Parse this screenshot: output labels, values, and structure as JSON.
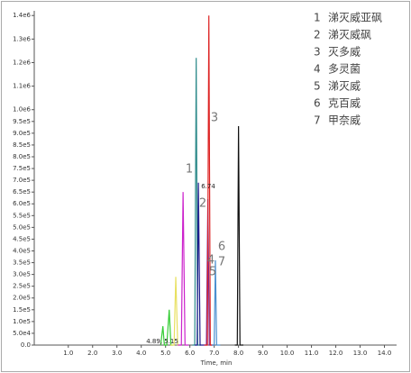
{
  "chart_data": {
    "type": "line",
    "xlabel": "Time, min",
    "xlim": [
      -0.4,
      14.5
    ],
    "xticks": [
      {
        "value": 1,
        "label": "1.0"
      },
      {
        "value": 2,
        "label": "2.0"
      },
      {
        "value": 3,
        "label": "3.0"
      },
      {
        "value": 4,
        "label": "4.0"
      },
      {
        "value": 5,
        "label": "5.0"
      },
      {
        "value": 6,
        "label": "6.0"
      },
      {
        "value": 7,
        "label": "7.0"
      },
      {
        "value": 8,
        "label": "8.0"
      },
      {
        "value": 9,
        "label": "9.0"
      },
      {
        "value": 10,
        "label": "10.0"
      },
      {
        "value": 11,
        "label": "11.0"
      },
      {
        "value": 12,
        "label": "12.0"
      },
      {
        "value": 13,
        "label": "13.0"
      },
      {
        "value": 14,
        "label": "14.0"
      }
    ],
    "ylim": [
      0,
      1420000
    ],
    "yticks": [
      {
        "value": 0,
        "label": "0.0"
      },
      {
        "value": 50000,
        "label": "5.0e4"
      },
      {
        "value": 100000,
        "label": "1.0e5"
      },
      {
        "value": 150000,
        "label": "1.5e5"
      },
      {
        "value": 200000,
        "label": "2.0e5"
      },
      {
        "value": 250000,
        "label": "2.5e5"
      },
      {
        "value": 300000,
        "label": "3.0e5"
      },
      {
        "value": 350000,
        "label": "3.5e5"
      },
      {
        "value": 400000,
        "label": "4.0e5"
      },
      {
        "value": 450000,
        "label": "4.5e5"
      },
      {
        "value": 500000,
        "label": "5.0e5"
      },
      {
        "value": 550000,
        "label": "5.5e5"
      },
      {
        "value": 600000,
        "label": "6.0e5"
      },
      {
        "value": 650000,
        "label": "6.5e5"
      },
      {
        "value": 700000,
        "label": "7.0e5"
      },
      {
        "value": 750000,
        "label": "7.5e5"
      },
      {
        "value": 800000,
        "label": "8.0e5"
      },
      {
        "value": 850000,
        "label": "8.5e5"
      },
      {
        "value": 900000,
        "label": "9.0e5"
      },
      {
        "value": 950000,
        "label": "9.5e5"
      },
      {
        "value": 1000000,
        "label": "1.0e6"
      },
      {
        "value": 1100000,
        "label": "1.1e6"
      },
      {
        "value": 1200000,
        "label": "1.2e6"
      },
      {
        "value": 1300000,
        "label": "1.3e6"
      },
      {
        "value": 1400000,
        "label": "1.4e6"
      }
    ],
    "series": [
      {
        "color": "#33cc33",
        "x": [
          4.8,
          4.89,
          4.95,
          5.05,
          5.15,
          5.22,
          5.3
        ],
        "values": [
          0,
          80000,
          0,
          0,
          150000,
          0,
          0
        ]
      },
      {
        "color": "#e8e060",
        "x": [
          5.2,
          5.35,
          5.42,
          5.5,
          5.6
        ],
        "values": [
          0,
          0,
          290000,
          0,
          0
        ]
      },
      {
        "color": "#cc22cc",
        "x": [
          5.5,
          5.65,
          5.72,
          5.8,
          5.95
        ],
        "values": [
          0,
          0,
          650000,
          0,
          0
        ]
      },
      {
        "color": "#2e8b8b",
        "x": [
          6.1,
          6.2,
          6.26,
          6.32,
          6.45
        ],
        "values": [
          0,
          0,
          1220000,
          0,
          0
        ]
      },
      {
        "color": "#1a1a8c",
        "x": [
          6.2,
          6.3,
          6.35,
          6.42,
          6.6
        ],
        "values": [
          0,
          0,
          690000,
          0,
          0
        ]
      },
      {
        "color": "#7a2a9a",
        "x": [
          6.55,
          6.68,
          6.74,
          6.8,
          6.95
        ],
        "values": [
          0,
          0,
          620000,
          0,
          0
        ]
      },
      {
        "color": "#dd2222",
        "x": [
          6.6,
          6.72,
          6.78,
          6.84,
          7.0
        ],
        "values": [
          0,
          0,
          1400000,
          0,
          0
        ]
      },
      {
        "color": "#4a90d0",
        "x": [
          6.9,
          7.0,
          7.05,
          7.1,
          7.25
        ],
        "values": [
          0,
          0,
          360000,
          0,
          0
        ]
      },
      {
        "color": "#111111",
        "x": [
          7.85,
          7.95,
          8.0,
          8.06,
          8.2
        ],
        "values": [
          0,
          0,
          930000,
          0,
          0
        ]
      }
    ],
    "annotations": [
      "1",
      "2",
      "3",
      "4",
      "5",
      "6",
      "7",
      "6.74",
      "4.89, 5.15"
    ],
    "legend": [
      {
        "number": "1",
        "name": "涕灭威亚砜"
      },
      {
        "number": "2",
        "name": "涕灭威砜"
      },
      {
        "number": "3",
        "name": "灭多威"
      },
      {
        "number": "4",
        "name": "多灵菌"
      },
      {
        "number": "5",
        "name": "涕灭威"
      },
      {
        "number": "6",
        "name": "克百威"
      },
      {
        "number": "7",
        "name": "甲奈威"
      }
    ]
  }
}
